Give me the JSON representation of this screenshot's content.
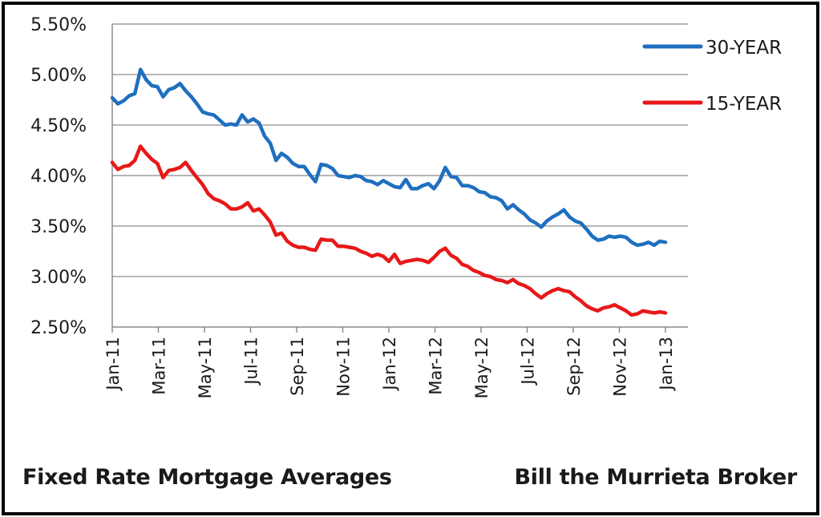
{
  "captions": {
    "left": "Fixed Rate Mortgage Averages",
    "right": "Bill the Murrieta Broker"
  },
  "chart_data": {
    "type": "line",
    "y_ticks": [
      "2.50%",
      "3.00%",
      "3.50%",
      "4.00%",
      "4.50%",
      "5.00%",
      "5.50%"
    ],
    "y_tick_values": [
      2.5,
      3.0,
      3.5,
      4.0,
      4.5,
      5.0,
      5.5
    ],
    "ylim": [
      2.5,
      5.5
    ],
    "x_tick_labels": [
      "Jan-11",
      "Mar-11",
      "May-11",
      "Jul-11",
      "Sep-11",
      "Nov-11",
      "Jan-12",
      "Mar-12",
      "May-12",
      "Jul-12",
      "Sep-12",
      "Nov-12",
      "Jan-13"
    ],
    "xlim": [
      "Jan-11",
      "Jan-13"
    ],
    "grid": "horizontal",
    "legend": "top-right",
    "series": [
      {
        "name": "30-YEAR",
        "color": "#1f6fc0",
        "values": [
          4.77,
          4.71,
          4.74,
          4.79,
          4.81,
          5.05,
          4.95,
          4.89,
          4.88,
          4.78,
          4.85,
          4.87,
          4.91,
          4.84,
          4.78,
          4.71,
          4.63,
          4.61,
          4.6,
          4.55,
          4.5,
          4.51,
          4.5,
          4.6,
          4.53,
          4.56,
          4.52,
          4.39,
          4.32,
          4.15,
          4.22,
          4.18,
          4.12,
          4.09,
          4.09,
          4.01,
          3.94,
          4.11,
          4.1,
          4.07,
          4.0,
          3.99,
          3.98,
          4.0,
          3.99,
          3.95,
          3.94,
          3.91,
          3.95,
          3.92,
          3.89,
          3.88,
          3.96,
          3.87,
          3.87,
          3.9,
          3.92,
          3.87,
          3.95,
          4.08,
          3.99,
          3.98,
          3.9,
          3.9,
          3.88,
          3.84,
          3.83,
          3.79,
          3.78,
          3.75,
          3.67,
          3.71,
          3.66,
          3.62,
          3.56,
          3.53,
          3.49,
          3.55,
          3.59,
          3.62,
          3.66,
          3.59,
          3.55,
          3.53,
          3.47,
          3.4,
          3.36,
          3.37,
          3.4,
          3.39,
          3.4,
          3.39,
          3.34,
          3.31,
          3.32,
          3.34,
          3.31,
          3.35,
          3.34
        ]
      },
      {
        "name": "15-YEAR",
        "color": "#e81818",
        "values": [
          4.13,
          4.06,
          4.09,
          4.1,
          4.15,
          4.29,
          4.22,
          4.16,
          4.12,
          3.98,
          4.05,
          4.06,
          4.08,
          4.13,
          4.05,
          3.98,
          3.91,
          3.82,
          3.77,
          3.75,
          3.72,
          3.67,
          3.67,
          3.69,
          3.73,
          3.65,
          3.67,
          3.61,
          3.54,
          3.41,
          3.43,
          3.35,
          3.31,
          3.29,
          3.29,
          3.27,
          3.26,
          3.37,
          3.36,
          3.36,
          3.3,
          3.3,
          3.29,
          3.28,
          3.25,
          3.23,
          3.2,
          3.22,
          3.2,
          3.15,
          3.22,
          3.13,
          3.15,
          3.16,
          3.17,
          3.16,
          3.14,
          3.19,
          3.25,
          3.28,
          3.21,
          3.18,
          3.12,
          3.1,
          3.06,
          3.04,
          3.01,
          3.0,
          2.97,
          2.96,
          2.94,
          2.97,
          2.93,
          2.91,
          2.88,
          2.83,
          2.79,
          2.83,
          2.86,
          2.88,
          2.86,
          2.85,
          2.8,
          2.76,
          2.71,
          2.68,
          2.66,
          2.69,
          2.7,
          2.72,
          2.69,
          2.66,
          2.62,
          2.63,
          2.66,
          2.65,
          2.64,
          2.65,
          2.64
        ]
      }
    ]
  }
}
